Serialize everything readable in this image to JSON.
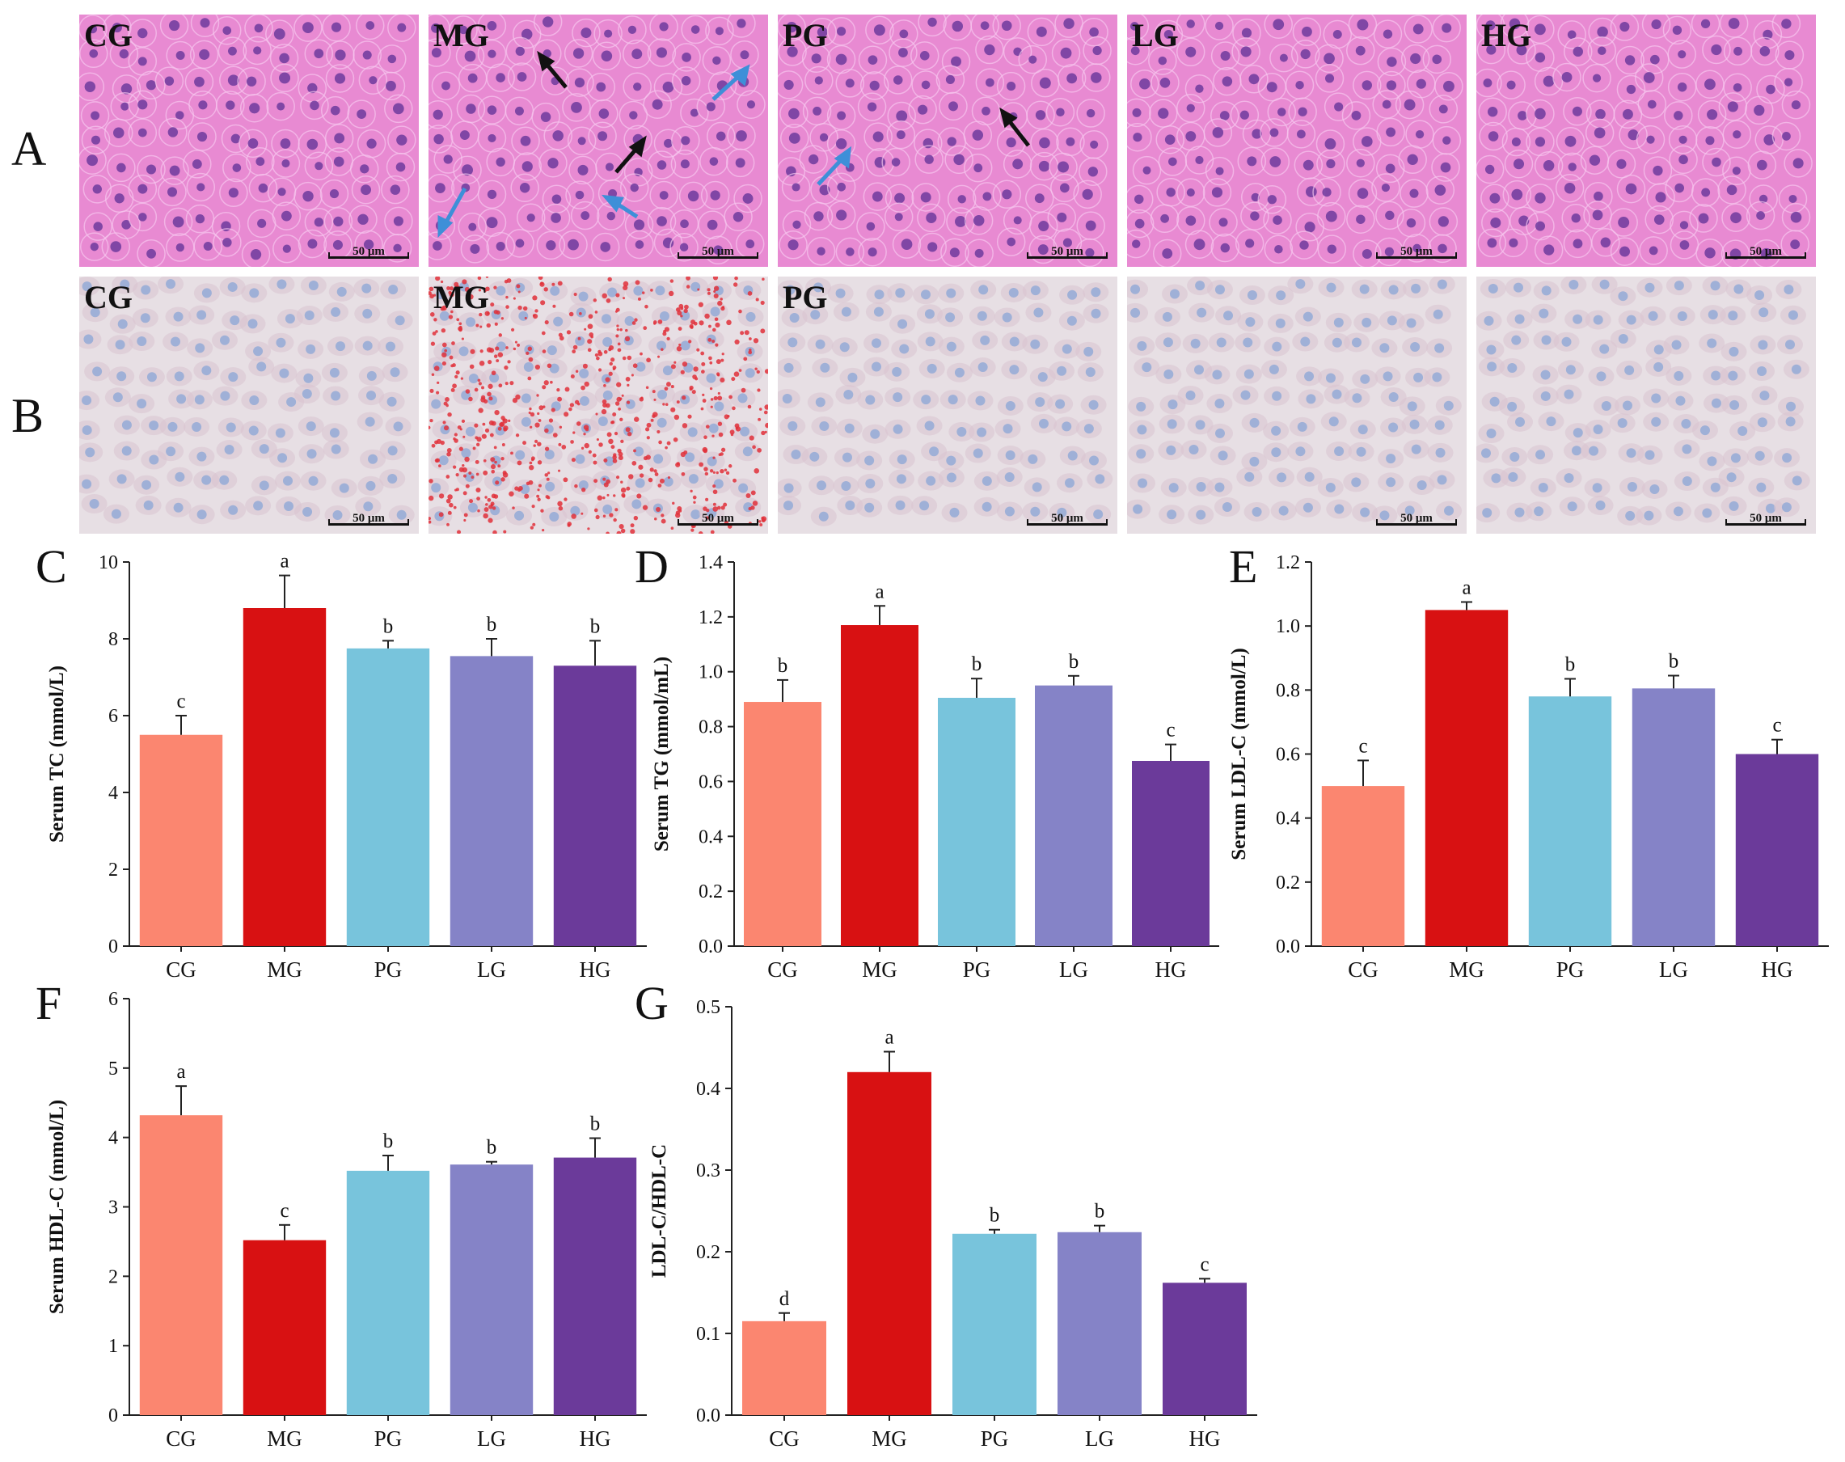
{
  "figure": {
    "row_labels": [
      "A",
      "B"
    ],
    "scale_bar": "50 μm",
    "row_a_panels": [
      "CG",
      "MG",
      "PG",
      "LG",
      "HG"
    ],
    "row_b_panels": [
      "CG",
      "MG",
      "PG",
      "",
      ""
    ]
  },
  "colors": {
    "CG": "#fb8670",
    "MG": "#d81112",
    "PG": "#78c4dc",
    "LG": "#8583c7",
    "HG": "#6b3a9a",
    "he_stain": "#e88ad2",
    "he_nucleus": "#6d3a9e",
    "oro_bg": "#e7dfe4",
    "oro_nucleus": "#8fa7d6",
    "lipid": "#e0303a",
    "arrow_black": "#111111",
    "arrow_blue": "#3e8fd8"
  },
  "chart_data": [
    {
      "panel": "C",
      "type": "bar",
      "categories": [
        "CG",
        "MG",
        "PG",
        "LG",
        "HG"
      ],
      "values": [
        5.5,
        8.8,
        7.75,
        7.55,
        7.3
      ],
      "errors": [
        0.5,
        0.85,
        0.2,
        0.45,
        0.65
      ],
      "letters": [
        "c",
        "a",
        "b",
        "b",
        "b"
      ],
      "ylabel": "Serum TC (mmol/L)",
      "ylim": [
        0,
        10
      ],
      "ticks": [
        "0",
        "2",
        "4",
        "6",
        "8",
        "10"
      ]
    },
    {
      "panel": "D",
      "type": "bar",
      "categories": [
        "CG",
        "MG",
        "PG",
        "LG",
        "HG"
      ],
      "values": [
        0.89,
        1.17,
        0.905,
        0.95,
        0.675
      ],
      "errors": [
        0.08,
        0.07,
        0.07,
        0.035,
        0.06
      ],
      "letters": [
        "b",
        "a",
        "b",
        "b",
        "c"
      ],
      "ylabel": "Serum TG (mmol/mL)",
      "ylim": [
        0,
        1.4
      ],
      "ticks": [
        "0.0",
        "0.2",
        "0.4",
        "0.6",
        "0.8",
        "1.0",
        "1.2",
        "1.4"
      ]
    },
    {
      "panel": "E",
      "type": "bar",
      "categories": [
        "CG",
        "MG",
        "PG",
        "LG",
        "HG"
      ],
      "values": [
        0.5,
        1.05,
        0.78,
        0.805,
        0.6
      ],
      "errors": [
        0.08,
        0.025,
        0.055,
        0.04,
        0.045
      ],
      "letters": [
        "c",
        "a",
        "b",
        "b",
        "c"
      ],
      "ylabel": "Serum LDL-C (mmol/L)",
      "ylim": [
        0,
        1.2
      ],
      "ticks": [
        "0.0",
        "0.2",
        "0.4",
        "0.6",
        "0.8",
        "1.0",
        "1.2"
      ]
    },
    {
      "panel": "F",
      "type": "bar",
      "categories": [
        "CG",
        "MG",
        "PG",
        "LG",
        "HG"
      ],
      "values": [
        4.32,
        2.52,
        3.52,
        3.61,
        3.71
      ],
      "errors": [
        0.42,
        0.22,
        0.22,
        0.04,
        0.28
      ],
      "letters": [
        "a",
        "c",
        "b",
        "b",
        "b"
      ],
      "ylabel": "Serum HDL-C (mmol/L)",
      "ylim": [
        0,
        6
      ],
      "ticks": [
        "0",
        "1",
        "2",
        "3",
        "4",
        "5",
        "6"
      ]
    },
    {
      "panel": "G",
      "type": "bar",
      "categories": [
        "CG",
        "MG",
        "PG",
        "LG",
        "HG"
      ],
      "values": [
        0.115,
        0.42,
        0.222,
        0.224,
        0.162
      ],
      "errors": [
        0.01,
        0.025,
        0.005,
        0.008,
        0.005
      ],
      "letters": [
        "d",
        "a",
        "b",
        "b",
        "c"
      ],
      "ylabel": "LDL-C/HDL-C",
      "ylim": [
        0,
        0.5
      ],
      "ticks": [
        "0.0",
        "0.1",
        "0.2",
        "0.3",
        "0.4",
        "0.5"
      ]
    }
  ]
}
